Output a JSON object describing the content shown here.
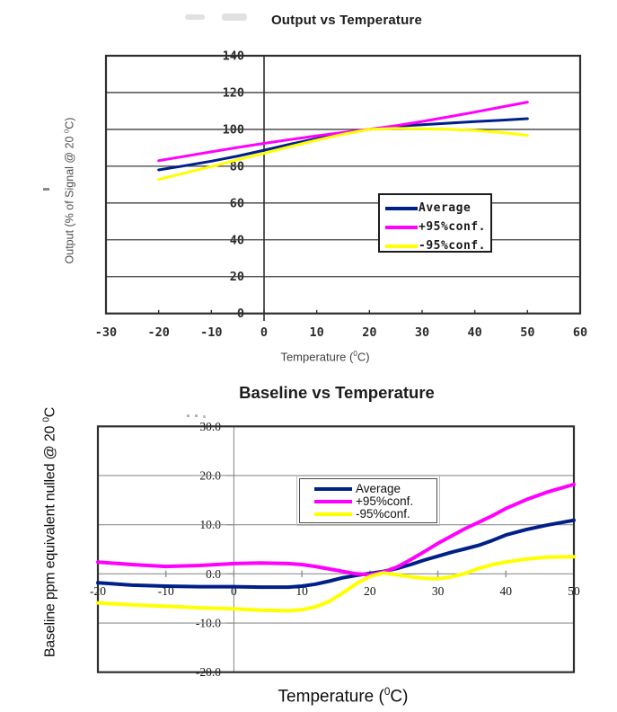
{
  "page": {
    "background": "#ffffff"
  },
  "chart_data": [
    {
      "type": "line",
      "title": "Output vs Temperature",
      "xlabel": "Temperature (0C)",
      "xlabel_pre": "Temperature (",
      "xlabel_sup": "0",
      "xlabel_post": "C)",
      "ylabel": "Output (% of Signal @ 20 0C)",
      "ylabel_pre": "Output (% of Signal @ 20 ",
      "ylabel_sup": "0",
      "ylabel_post": "C)",
      "xlim": [
        -30,
        60
      ],
      "ylim": [
        0,
        140
      ],
      "x_tick_labels": [
        "-30",
        "-20",
        "-10",
        "0",
        "10",
        "20",
        "30",
        "40",
        "50",
        "60"
      ],
      "x_tick_values": [
        -30,
        -20,
        -10,
        0,
        10,
        20,
        30,
        40,
        50,
        60
      ],
      "y_tick_labels": [
        "0",
        "20",
        "40",
        "60",
        "80",
        "100",
        "120",
        "140"
      ],
      "y_tick_values": [
        0,
        20,
        40,
        60,
        80,
        100,
        120,
        140
      ],
      "grid": "horizontal",
      "legend_position": "inside-right",
      "x": [
        -20,
        -15,
        -10,
        -5,
        0,
        5,
        10,
        15,
        20,
        25,
        30,
        35,
        40,
        45,
        50
      ],
      "series": [
        {
          "name": "Average",
          "color": "#002089",
          "values": [
            78,
            80.3,
            82.7,
            85.5,
            88.7,
            92,
            95,
            97.7,
            100,
            101.7,
            102.5,
            103.4,
            104.2,
            105,
            105.8
          ]
        },
        {
          "name": "+95%conf.",
          "color": "#ff00ff",
          "values": [
            83,
            85.4,
            87.8,
            90.2,
            92.4,
            94.5,
            96.5,
            98.3,
            100,
            102,
            104.3,
            106.8,
            109.4,
            112.1,
            114.8
          ]
        },
        {
          "name": "-95%conf.",
          "color": "#ffff00",
          "values": [
            72.8,
            76.3,
            79.8,
            83.5,
            87,
            90.7,
            94.2,
            97.3,
            100,
            100.6,
            100.3,
            100,
            99.4,
            98.3,
            96.8
          ]
        }
      ]
    },
    {
      "type": "line",
      "title": "Baseline vs Temperature",
      "xlabel": "Temperature (0C)",
      "xlabel_pre": "Temperature (",
      "xlabel_sup": "0",
      "xlabel_post": "C)",
      "ylabel": "Baseline ppm equivalent nulled @ 20 0C",
      "ylabel_pre": "Baseline ppm equivalent nulled @ 20 ",
      "ylabel_sup": "0",
      "ylabel_post": "C",
      "xlim": [
        -20,
        50
      ],
      "ylim": [
        -20,
        30
      ],
      "x_tick_labels": [
        "-20",
        "-10",
        "0",
        "10",
        "20",
        "30",
        "40",
        "50"
      ],
      "x_tick_values": [
        -20,
        -10,
        0,
        10,
        20,
        30,
        40,
        50
      ],
      "y_tick_labels": [
        "30.0",
        "20.0",
        "10.0",
        "0.0",
        "-10.0",
        "-20.0"
      ],
      "y_tick_values": [
        30,
        20,
        10,
        0,
        -10,
        -20
      ],
      "grid": "both",
      "legend_position": "inside-top",
      "x": [
        -20,
        -15,
        -10,
        -5,
        0,
        4,
        8,
        10,
        12,
        14,
        16,
        18,
        20,
        22,
        24,
        26,
        28,
        30,
        32,
        34,
        36,
        38,
        40,
        43,
        46,
        50
      ],
      "series": [
        {
          "name": "Average",
          "color": "#002089",
          "values": [
            -1.8,
            -2.3,
            -2.5,
            -2.6,
            -2.6,
            -2.7,
            -2.7,
            -2.5,
            -2.1,
            -1.5,
            -0.8,
            -0.3,
            0.1,
            0.5,
            1.1,
            1.9,
            2.8,
            3.6,
            4.4,
            5.1,
            5.8,
            6.8,
            7.9,
            9,
            9.9,
            10.9
          ]
        },
        {
          "name": "+95%conf.",
          "color": "#ff00ff",
          "values": [
            2.4,
            1.9,
            1.5,
            1.7,
            2.1,
            2.2,
            2.1,
            1.9,
            1.5,
            1,
            0.5,
            0,
            -0.2,
            0.4,
            1.4,
            2.9,
            4.5,
            6.2,
            7.7,
            9.2,
            10.5,
            11.8,
            13.3,
            15.1,
            16.6,
            18.2
          ]
        },
        {
          "name": "-95%conf.",
          "color": "#ffff00",
          "values": [
            -5.9,
            -6.3,
            -6.6,
            -6.9,
            -7.1,
            -7.4,
            -7.5,
            -7.3,
            -6.7,
            -5.6,
            -3.9,
            -2,
            -0.5,
            0.2,
            -0.2,
            -0.6,
            -0.9,
            -1,
            -0.6,
            0.1,
            1.1,
            1.9,
            2.4,
            3,
            3.4,
            3.5
          ]
        }
      ]
    }
  ]
}
